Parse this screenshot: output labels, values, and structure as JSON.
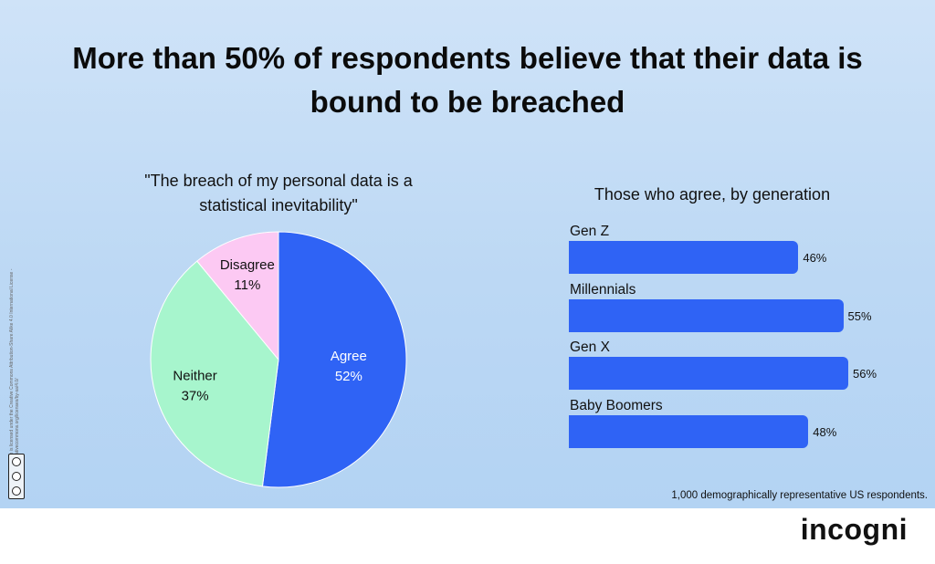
{
  "title": "More than 50% of respondents believe that their data is bound to be breached",
  "colors": {
    "agree": "#2f63f5",
    "neither": "#a7f5cd",
    "disagree": "#fcc9f3",
    "bar": "#2f63f5"
  },
  "chart_data": [
    {
      "type": "pie",
      "title": "\"The breach of my personal data is a statistical inevitability\"",
      "slices": [
        {
          "label": "Agree",
          "value": 52,
          "display": "52%"
        },
        {
          "label": "Neither",
          "value": 37,
          "display": "37%"
        },
        {
          "label": "Disagree",
          "value": 11,
          "display": "11%"
        }
      ]
    },
    {
      "type": "bar",
      "orientation": "horizontal",
      "title": "Those who agree, by generation",
      "categories": [
        "Gen Z",
        "Millennials",
        "Gen X",
        "Baby Boomers"
      ],
      "values": [
        46,
        55,
        56,
        48
      ],
      "value_labels": [
        "46%",
        "55%",
        "56%",
        "48%"
      ],
      "xlim": [
        0,
        56
      ]
    }
  ],
  "footnote": "1,000 demographically representative US respondents.",
  "license": "This image is licensed under the Creative Commons Attribution-Share Alike 4.0 International License - https://creativecommons.org/licenses/by-sa/4.0/",
  "brand": "incogni"
}
